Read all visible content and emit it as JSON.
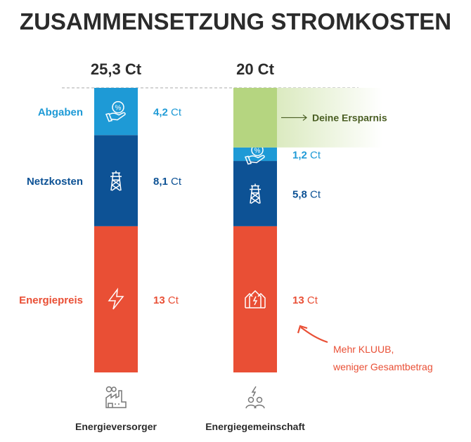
{
  "chart_data": {
    "type": "bar",
    "stacked": true,
    "title": "ZUSAMMENSETZUNG STROMKOSTEN",
    "unit": "Ct",
    "categories": [
      "Energieversorger",
      "Energiegemeinschaft"
    ],
    "totals": [
      "25,3 Ct",
      "20 Ct"
    ],
    "series": [
      {
        "name": "Energiepreis",
        "values": [
          13,
          13
        ],
        "labels": [
          "13 Ct",
          "13 Ct"
        ],
        "color": "#e94f35",
        "icons": [
          "lightning-icon",
          "community-houses-icon"
        ]
      },
      {
        "name": "Netzkosten",
        "values": [
          8.1,
          5.8
        ],
        "labels": [
          "8,1 Ct",
          "5,8 Ct"
        ],
        "color": "#0d5295",
        "icons": [
          "power-pylon-icon",
          "power-pylon-icon"
        ]
      },
      {
        "name": "Abgaben",
        "values": [
          4.2,
          1.2
        ],
        "labels": [
          "4,2 Ct",
          "1,2 Ct"
        ],
        "color": "#1e9ad6",
        "icons": [
          "hand-percent-icon",
          "hand-percent-icon"
        ]
      }
    ],
    "savings": {
      "label": "Deine Ersparnis",
      "value": 5.3,
      "color": "#b5d580",
      "text_color": "#4a5e23"
    },
    "annotation": [
      "Mehr KLUUB,",
      "weniger Gesamtbetrag"
    ],
    "category_icons": [
      "factory-icon",
      "people-energy-icon"
    ],
    "legend": "none",
    "grid": false
  }
}
